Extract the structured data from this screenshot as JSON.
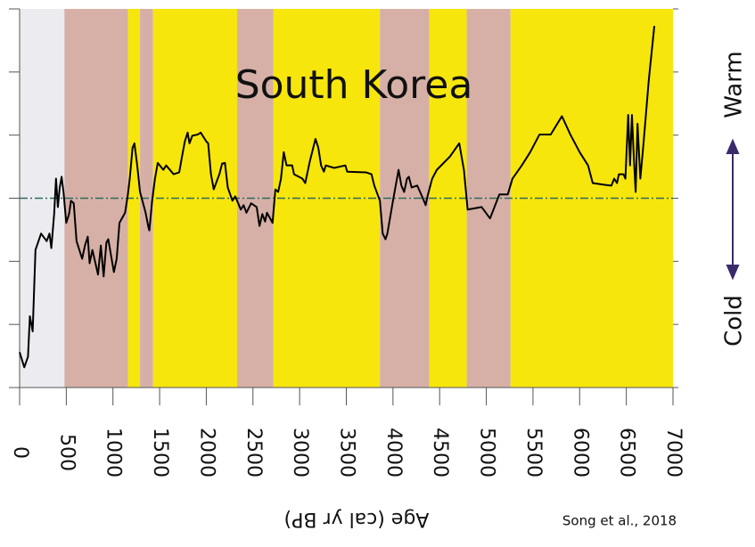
{
  "chart_data": {
    "type": "line",
    "title": "South Korea",
    "xlabel": "Age (cal yr BP)",
    "ylabel_low": "Cold",
    "ylabel_high": "Warm",
    "source": "Song et al., 2018",
    "xlim": [
      0,
      7000
    ],
    "xticks": [
      0,
      500,
      1000,
      1500,
      2000,
      2500,
      3000,
      3500,
      4000,
      4500,
      5000,
      5500,
      6000,
      6500,
      7000
    ],
    "ylim": [
      -3,
      3
    ],
    "yticks": [
      -3,
      -2,
      -1,
      0,
      1,
      2,
      3
    ],
    "reference_line": 0,
    "bands": [
      {
        "start": 0,
        "end": 480,
        "color": "#ececf0"
      },
      {
        "start": 480,
        "end": 1160,
        "color": "#d6b0a6"
      },
      {
        "start": 1160,
        "end": 1290,
        "color": "#f7e60c"
      },
      {
        "start": 1290,
        "end": 1430,
        "color": "#d6b0a6"
      },
      {
        "start": 1430,
        "end": 2330,
        "color": "#f7e60c"
      },
      {
        "start": 2330,
        "end": 2720,
        "color": "#d6b0a6"
      },
      {
        "start": 2720,
        "end": 3860,
        "color": "#f7e60c"
      },
      {
        "start": 3860,
        "end": 4390,
        "color": "#d6b0a6"
      },
      {
        "start": 4390,
        "end": 4790,
        "color": "#f7e60c"
      },
      {
        "start": 4790,
        "end": 5260,
        "color": "#d6b0a6"
      },
      {
        "start": 5260,
        "end": 7000,
        "color": "#f7e60c"
      }
    ],
    "series": [
      {
        "color": "#000000",
        "x": [
          0,
          50,
          90,
          110,
          140,
          170,
          230,
          290,
          320,
          340,
          370,
          390,
          410,
          430,
          450,
          470,
          500,
          530,
          550,
          580,
          610,
          670,
          700,
          730,
          750,
          780,
          840,
          870,
          900,
          930,
          950,
          1010,
          1040,
          1070,
          1130,
          1160,
          1180,
          1210,
          1230,
          1260,
          1290,
          1350,
          1380,
          1390,
          1420,
          1450,
          1480,
          1540,
          1570,
          1650,
          1710,
          1740,
          1770,
          1800,
          1820,
          1850,
          1910,
          1940,
          2000,
          2020,
          2050,
          2080,
          2140,
          2170,
          2200,
          2230,
          2280,
          2310,
          2370,
          2400,
          2430,
          2480,
          2540,
          2570,
          2600,
          2630,
          2650,
          2710,
          2740,
          2770,
          2800,
          2830,
          2860,
          2920,
          2940,
          3030,
          3060,
          3110,
          3170,
          3200,
          3230,
          3260,
          3280,
          3370,
          3490,
          3510,
          3710,
          3770,
          3800,
          3860,
          3890,
          3920,
          3940,
          4000,
          4060,
          4090,
          4120,
          4150,
          4170,
          4200,
          4260,
          4320,
          4350,
          4370,
          4420,
          4470,
          4610,
          4710,
          4760,
          4800,
          4950,
          5040,
          5140,
          5230,
          5280,
          5380,
          5470,
          5570,
          5690,
          5810,
          5900,
          6000,
          6090,
          6140,
          6280,
          6340,
          6370,
          6400,
          6420,
          6470,
          6490,
          6520,
          6540,
          6560,
          6580,
          6600,
          6620,
          6650,
          6680,
          6700,
          6740,
          6800
        ],
        "values": [
          -2.44,
          -2.68,
          -2.51,
          -1.87,
          -2.11,
          -0.82,
          -0.56,
          -0.68,
          -0.56,
          -0.79,
          -0.25,
          0.31,
          -0.14,
          0.17,
          0.34,
          0.1,
          -0.39,
          -0.25,
          -0.04,
          -0.08,
          -0.68,
          -0.96,
          -0.75,
          -0.61,
          -1.03,
          -0.82,
          -1.21,
          -0.75,
          -1.24,
          -0.7,
          -0.65,
          -1.17,
          -0.96,
          -0.39,
          -0.23,
          0.06,
          0.31,
          0.8,
          0.87,
          0.52,
          0.1,
          -0.23,
          -0.46,
          -0.51,
          -0.04,
          0.31,
          0.56,
          0.45,
          0.52,
          0.38,
          0.41,
          0.66,
          0.9,
          1.04,
          0.87,
          0.99,
          1.01,
          1.04,
          0.9,
          0.87,
          0.38,
          0.14,
          0.38,
          0.55,
          0.56,
          0.17,
          -0.04,
          0.03,
          -0.18,
          -0.11,
          -0.23,
          -0.08,
          -0.14,
          -0.44,
          -0.25,
          -0.37,
          -0.23,
          -0.39,
          0.14,
          0.1,
          0.31,
          0.73,
          0.52,
          0.52,
          0.38,
          0.31,
          0.24,
          0.59,
          0.94,
          0.8,
          0.52,
          0.42,
          0.52,
          0.48,
          0.52,
          0.42,
          0.41,
          0.38,
          0.2,
          -0.04,
          -0.56,
          -0.65,
          -0.56,
          -0.04,
          0.45,
          0.2,
          0.1,
          0.31,
          0.34,
          0.17,
          0.2,
          0.0,
          -0.11,
          0.03,
          0.31,
          0.45,
          0.66,
          0.87,
          0.45,
          -0.18,
          -0.14,
          -0.32,
          0.06,
          0.06,
          0.31,
          0.52,
          0.73,
          1.01,
          1.01,
          1.3,
          1.01,
          0.73,
          0.52,
          0.24,
          0.21,
          0.2,
          0.31,
          0.24,
          0.38,
          0.38,
          0.31,
          1.32,
          0.52,
          1.32,
          0.66,
          0.1,
          1.18,
          0.31,
          0.8,
          1.15,
          1.86,
          2.73
        ]
      }
    ]
  }
}
